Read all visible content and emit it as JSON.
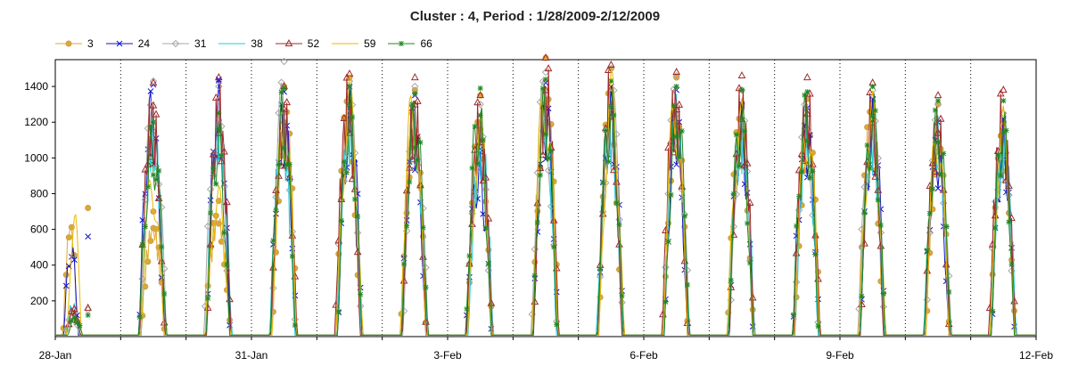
{
  "chart_data": {
    "type": "line",
    "title": "Cluster : 4, Period : 1/28/2009-2/12/2009",
    "xlabel": "",
    "ylabel": "",
    "x_ticks": [
      "28-Jan",
      "31-Jan",
      "3-Feb",
      "6-Feb",
      "9-Feb",
      "12-Feb"
    ],
    "x_range_days": [
      0,
      15
    ],
    "ylim": [
      0,
      1550
    ],
    "y_ticks": [
      200,
      400,
      600,
      800,
      1000,
      1200,
      1400
    ],
    "grid": "dotted vertical at day boundaries",
    "legend_position": "top-left",
    "series": [
      {
        "name": "3",
        "color": "#e0a82e",
        "marker": "circle",
        "daily_peaks": [
          720,
          700,
          760,
          1400,
          1450,
          1380,
          1350,
          1560,
          1500,
          1450,
          1300,
          1330,
          1320,
          1300,
          1200
        ]
      },
      {
        "name": "24",
        "color": "#1010cc",
        "marker": "x",
        "daily_peaks": [
          560,
          1410,
          1440,
          1370,
          1400,
          1350,
          1050,
          1420,
          1400,
          1380,
          1300,
          1280,
          1330,
          1200,
          1220
        ]
      },
      {
        "name": "31",
        "color": "#a8a8a8",
        "marker": "diamond",
        "daily_peaks": [
          150,
          1430,
          1400,
          1540,
          1430,
          1400,
          1300,
          1480,
          1500,
          1460,
          1380,
          1350,
          1380,
          1300,
          1250
        ]
      },
      {
        "name": "38",
        "color": "#22c8d8",
        "marker": "none",
        "daily_peaks": [
          200,
          1300,
          1350,
          1300,
          1350,
          1300,
          1250,
          1400,
          1350,
          1360,
          1300,
          1300,
          1300,
          1250,
          1220
        ]
      },
      {
        "name": "52",
        "color": "#a02828",
        "marker": "triangle",
        "daily_peaks": [
          160,
          1420,
          1450,
          1400,
          1470,
          1450,
          1350,
          1560,
          1520,
          1480,
          1460,
          1450,
          1420,
          1350,
          1380
        ]
      },
      {
        "name": "59",
        "color": "#e8b800",
        "marker": "none",
        "daily_peaks": [
          720,
          980,
          870,
          1380,
          1480,
          1450,
          1250,
          1500,
          1500,
          1460,
          1360,
          1350,
          1380,
          1340,
          1300
        ]
      },
      {
        "name": "66",
        "color": "#228822",
        "marker": "star",
        "daily_peaks": [
          120,
          1200,
          1250,
          1390,
          1400,
          1360,
          1390,
          1440,
          1430,
          1400,
          1380,
          1370,
          1400,
          1320,
          1320
        ]
      }
    ]
  }
}
